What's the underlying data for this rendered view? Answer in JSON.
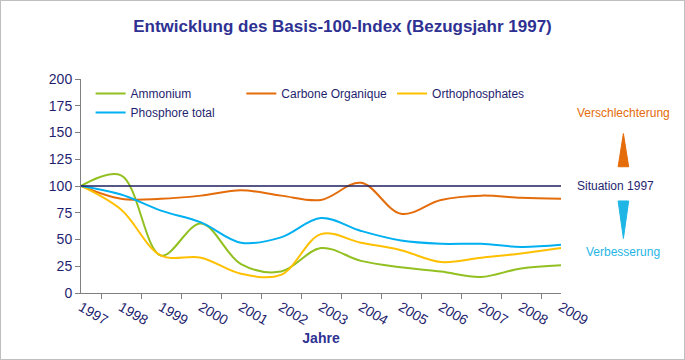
{
  "chart_data": {
    "type": "line",
    "title": "Entwicklung des Basis-100-Index (Bezugsjahr 1997)",
    "x_label": "Jahre",
    "categories": [
      "1997",
      "1998",
      "1999",
      "2000",
      "2001",
      "2002",
      "2003",
      "2004",
      "2005",
      "2006",
      "2007",
      "2008",
      "2009"
    ],
    "series": [
      {
        "name": "Ammonium",
        "color": "#92c020",
        "line_style": "smooth",
        "values": [
          100,
          110,
          35,
          65,
          27,
          20,
          42,
          30,
          24,
          20,
          15,
          23,
          26
        ]
      },
      {
        "name": "Carbone Organique",
        "color": "#e46c0a",
        "line_style": "smooth",
        "values": [
          100,
          88,
          88,
          91,
          96,
          91,
          87,
          103,
          74,
          87,
          91,
          89,
          88
        ]
      },
      {
        "name": "Orthophosphates",
        "color": "#ffc000",
        "line_style": "smooth",
        "values": [
          100,
          78,
          35,
          33,
          18,
          17,
          55,
          47,
          40,
          29,
          33,
          37,
          42
        ]
      },
      {
        "name": "Phosphore total",
        "color": "#00b0f0",
        "line_style": "smooth",
        "values": [
          100,
          92,
          77,
          66,
          47,
          52,
          70,
          58,
          49,
          46,
          46,
          43,
          45
        ]
      }
    ],
    "ylim": [
      0,
      200
    ],
    "yticks": [
      0,
      25,
      50,
      75,
      100,
      125,
      150,
      175,
      200
    ],
    "grid": false,
    "legend": "top",
    "reference_line": {
      "value": 100,
      "label": "Situation 1997",
      "color": "#1f1f5f"
    },
    "annotations": [
      {
        "text": "Verschlechterung",
        "color": "#e46c0a"
      },
      {
        "text": "Verbesserung",
        "color": "#1fb6e6"
      }
    ]
  }
}
